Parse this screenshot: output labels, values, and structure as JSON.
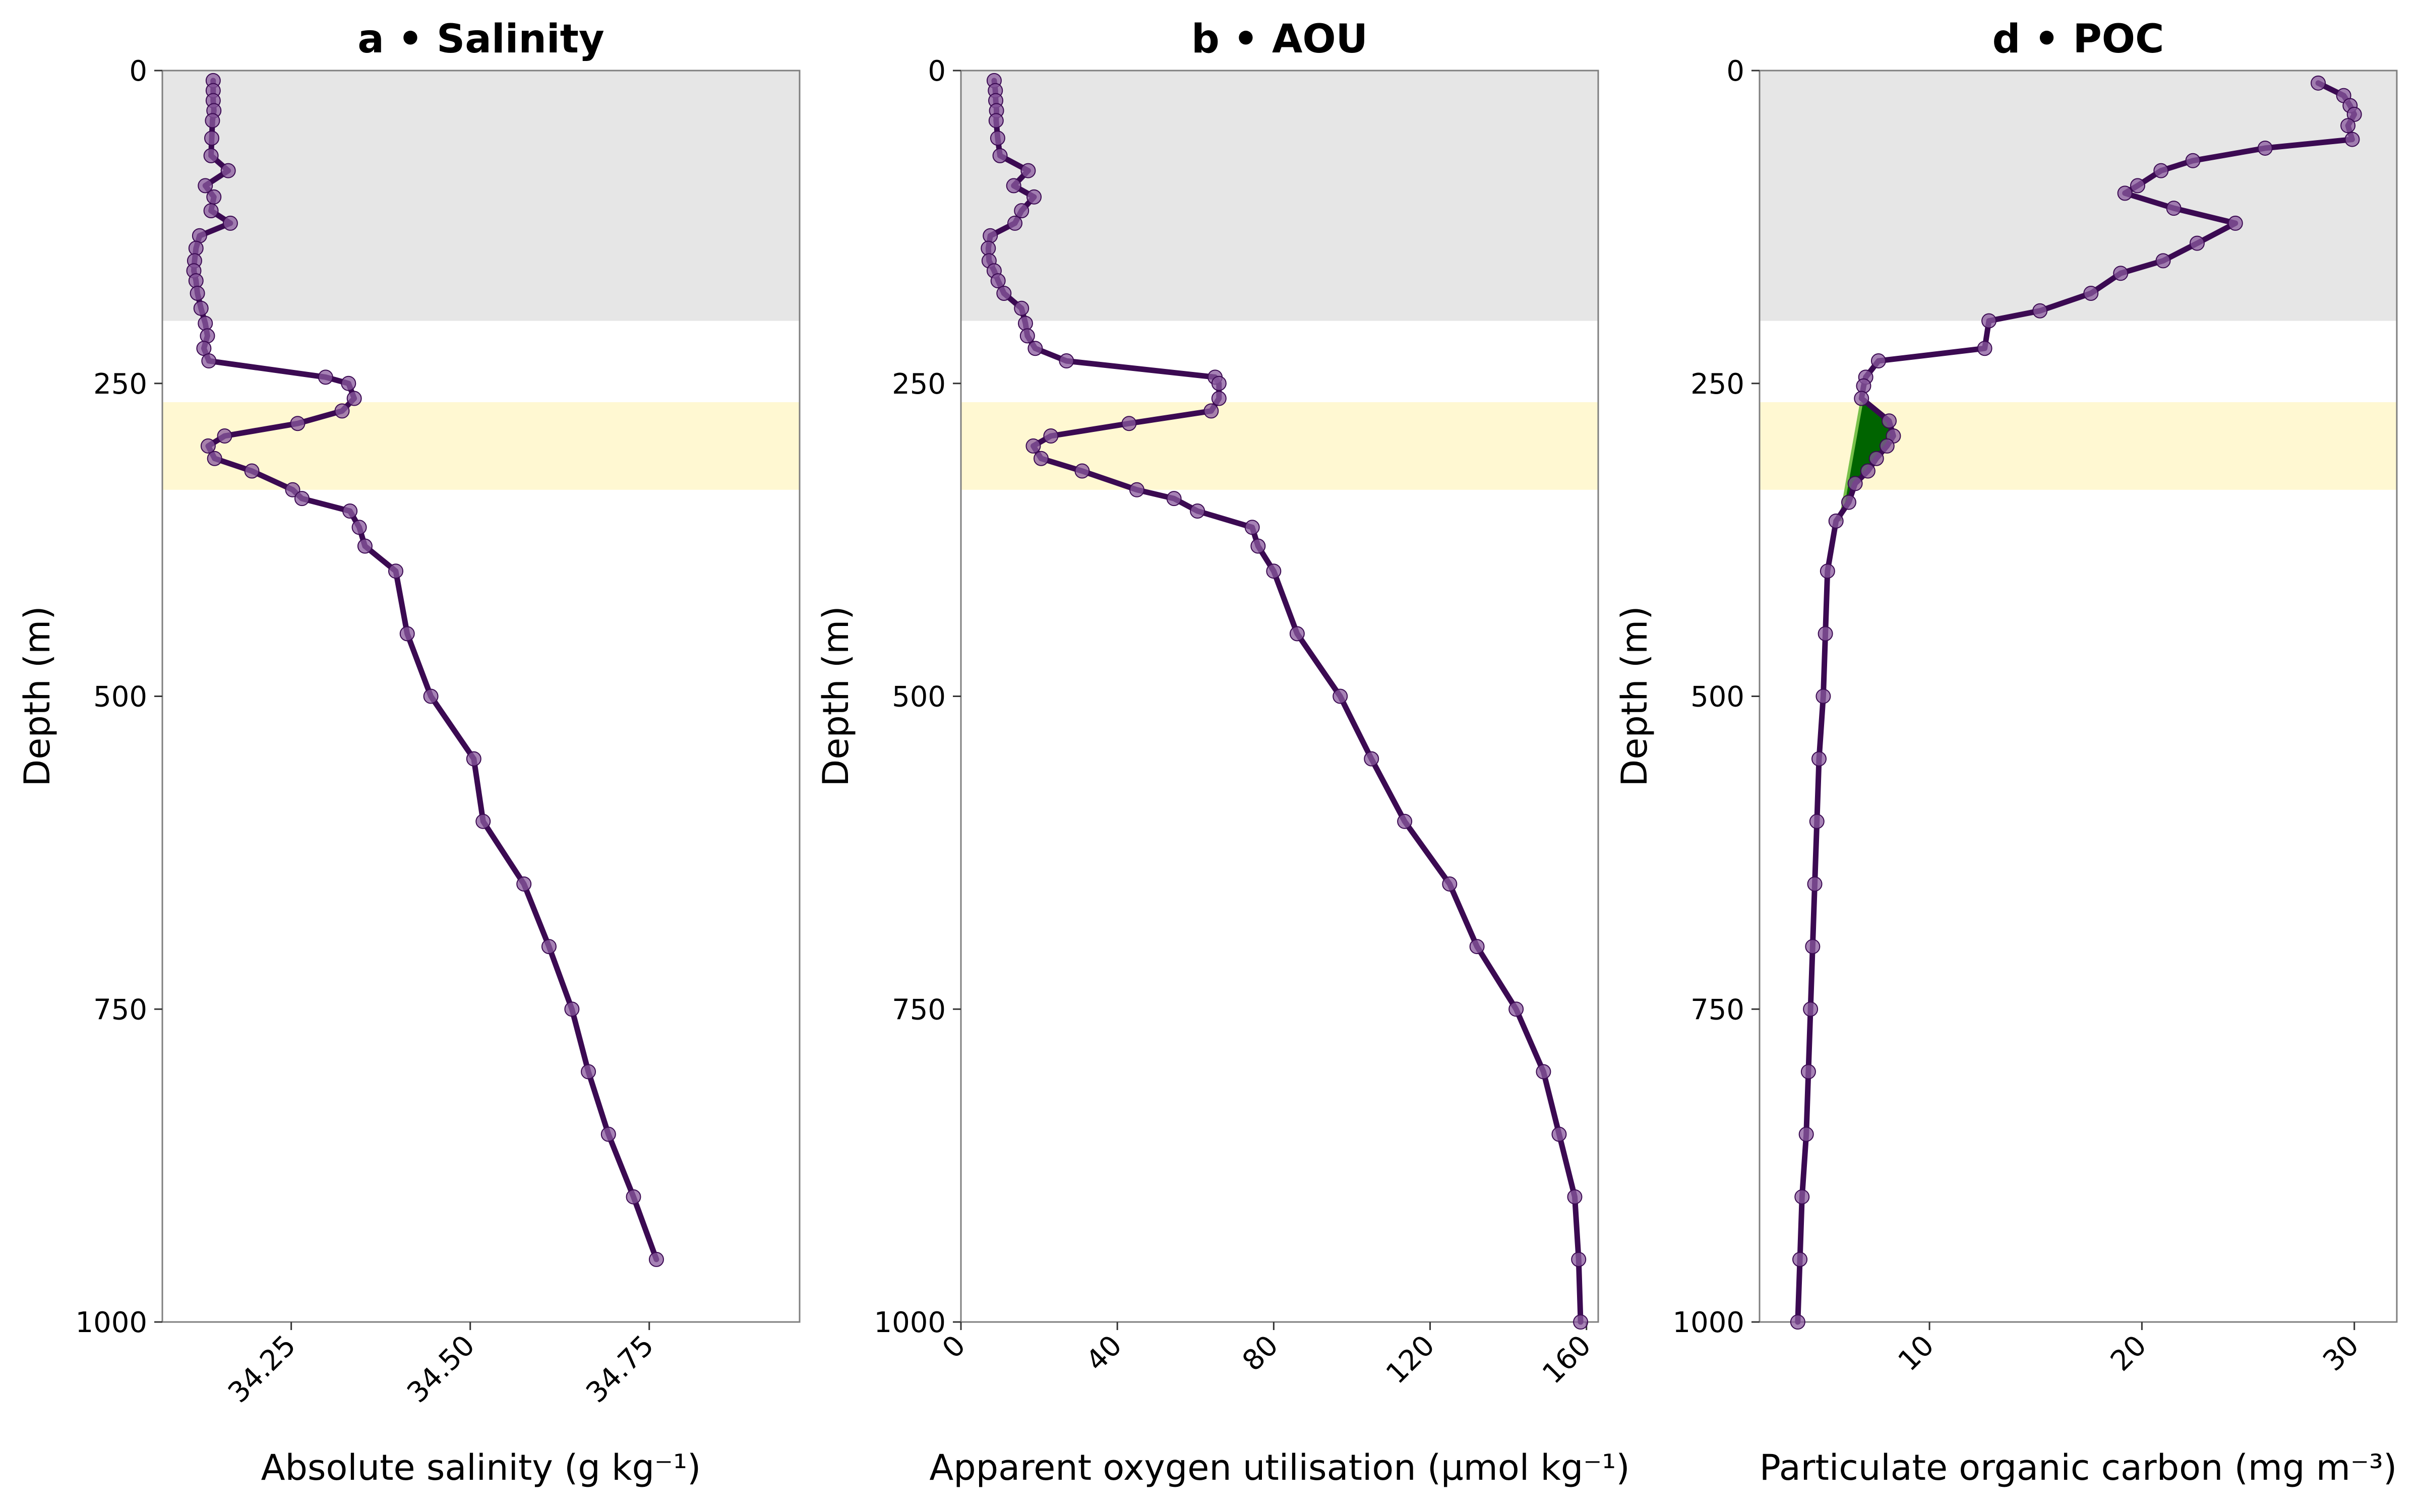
{
  "figure": {
    "line_color": "#3b0a52",
    "marker_color": "#8a5a9e",
    "mixed_layer_shade": "#e6e6e6",
    "highlight_band_shade": "#fff8d2",
    "poc_fill_color": "#006400",
    "poc_baseline_color": "#77c04a",
    "ylabel": "Depth (m)",
    "depth_ticks": [
      0,
      250,
      500,
      750,
      1000
    ],
    "depth_tick_labels": [
      "0",
      "250",
      "500",
      "750",
      "1000"
    ]
  },
  "chart_data": [
    {
      "type": "line",
      "title": "a • Salinity",
      "xlabel": "Absolute salinity (g kg⁻¹)",
      "ylabel": "Depth (m)",
      "xlim": [
        34.07,
        34.96
      ],
      "ylim": [
        1000,
        0
      ],
      "inverted_y": true,
      "xticks": [
        34.25,
        34.5,
        34.75
      ],
      "xtick_labels": [
        "34.25",
        "34.50",
        "34.75"
      ],
      "xtick_rotation": -45,
      "shaded_bands": [
        {
          "type": "mixed-layer",
          "depth_range": [
            0,
            200
          ]
        },
        {
          "type": "highlight",
          "depth_range": [
            265,
            335
          ]
        }
      ],
      "series": [
        {
          "x": [
            34.141,
            34.141,
            34.141,
            34.142,
            34.14,
            34.139,
            34.138,
            34.162,
            34.13,
            34.142,
            34.138,
            34.165,
            34.122,
            34.117,
            34.115,
            34.114,
            34.117,
            34.119,
            34.124,
            34.13,
            34.133,
            34.128,
            34.135,
            34.298,
            34.33,
            34.338,
            34.321,
            34.259,
            34.157,
            34.134,
            34.143,
            34.195,
            34.252,
            34.265,
            34.332,
            34.345,
            34.353,
            34.396,
            34.412,
            34.445,
            34.505,
            34.518,
            34.575,
            34.61,
            34.642,
            34.665,
            34.693,
            34.728,
            34.76
          ],
          "y": [
            8,
            16,
            24,
            32,
            40,
            54,
            68,
            80,
            92,
            101,
            112,
            122,
            132,
            142,
            152,
            160,
            168,
            178,
            190,
            202,
            212,
            222,
            232,
            245,
            250,
            262,
            272,
            282,
            292,
            300,
            310,
            320,
            335,
            342,
            352,
            365,
            380,
            400,
            450,
            500,
            550,
            600,
            650,
            700,
            750,
            800,
            850,
            900,
            950
          ]
        }
      ]
    },
    {
      "type": "line",
      "title": "b • AOU",
      "xlabel": "Apparent oxygen utilisation (µmol kg⁻¹)",
      "ylabel": "Depth (m)",
      "xlim": [
        0,
        163
      ],
      "ylim": [
        1000,
        0
      ],
      "inverted_y": true,
      "xticks": [
        0,
        40,
        80,
        120,
        160
      ],
      "xtick_labels": [
        "0",
        "40",
        "80",
        "120",
        "160"
      ],
      "xtick_rotation": -45,
      "shaded_bands": [
        {
          "type": "mixed-layer",
          "depth_range": [
            0,
            200
          ]
        },
        {
          "type": "highlight",
          "depth_range": [
            265,
            335
          ]
        }
      ],
      "series": [
        {
          "x": [
            8.5,
            8.8,
            8.9,
            9.1,
            9.0,
            9.4,
            10.0,
            17.2,
            13.5,
            18.7,
            15.5,
            13.8,
            7.5,
            7.0,
            7.2,
            8.5,
            9.5,
            11.0,
            15.5,
            16.5,
            17.0,
            19.0,
            27.0,
            65.0,
            66.0,
            66.0,
            64.0,
            43.0,
            23.0,
            18.5,
            20.5,
            31.0,
            45.0,
            54.5,
            60.5,
            74.5,
            76.0,
            80.0,
            86.0,
            97.0,
            105.0,
            113.5,
            125.0,
            132.0,
            142.0,
            149.0,
            153.0,
            157.0,
            158.0,
            158.5
          ],
          "y": [
            8,
            16,
            24,
            32,
            40,
            54,
            68,
            80,
            92,
            101,
            112,
            122,
            132,
            142,
            152,
            160,
            168,
            178,
            190,
            202,
            212,
            222,
            232,
            245,
            250,
            262,
            272,
            282,
            292,
            300,
            310,
            320,
            335,
            342,
            352,
            365,
            380,
            400,
            450,
            500,
            550,
            600,
            650,
            700,
            750,
            800,
            850,
            900,
            950,
            1000
          ]
        }
      ]
    },
    {
      "type": "line",
      "title": "d • POC",
      "xlabel": "Particulate organic carbon (mg m⁻³)",
      "ylabel": "Depth (m)",
      "xlim": [
        2.0,
        32.0
      ],
      "ylim": [
        1000,
        0
      ],
      "inverted_y": true,
      "xticks": [
        10,
        20,
        30
      ],
      "xtick_labels": [
        "10",
        "20",
        "30"
      ],
      "xtick_rotation": -45,
      "shaded_bands": [
        {
          "type": "mixed-layer",
          "depth_range": [
            0,
            200
          ]
        },
        {
          "type": "highlight",
          "depth_range": [
            265,
            335
          ]
        }
      ],
      "poc_anomaly": {
        "depth_range": [
          265,
          360
        ],
        "baseline": [
          [
            6.8,
            265
          ],
          [
            5.8,
            360
          ]
        ]
      },
      "series": [
        {
          "x": [
            28.3,
            29.5,
            29.8,
            30.0,
            29.7,
            29.9,
            25.8,
            22.4,
            20.9,
            19.8,
            19.2,
            21.5,
            24.4,
            22.6,
            21.0,
            19.0,
            17.6,
            15.2,
            12.8,
            12.6,
            7.6,
            7.0,
            6.9,
            6.8,
            8.1,
            8.3,
            8.0,
            7.5,
            7.1,
            6.5,
            6.2,
            5.6,
            5.2,
            5.1,
            5.0,
            4.8,
            4.7,
            4.6,
            4.5,
            4.4,
            4.3,
            4.2,
            4.0,
            3.9,
            3.8
          ],
          "y": [
            10,
            20,
            28,
            35,
            44,
            55,
            62,
            72,
            80,
            92,
            98,
            110,
            122,
            138,
            152,
            162,
            178,
            192,
            200,
            222,
            232,
            245,
            252,
            262,
            280,
            292,
            300,
            310,
            320,
            330,
            345,
            360,
            400,
            450,
            500,
            550,
            600,
            650,
            700,
            750,
            800,
            850,
            900,
            950,
            1000
          ]
        }
      ]
    }
  ]
}
